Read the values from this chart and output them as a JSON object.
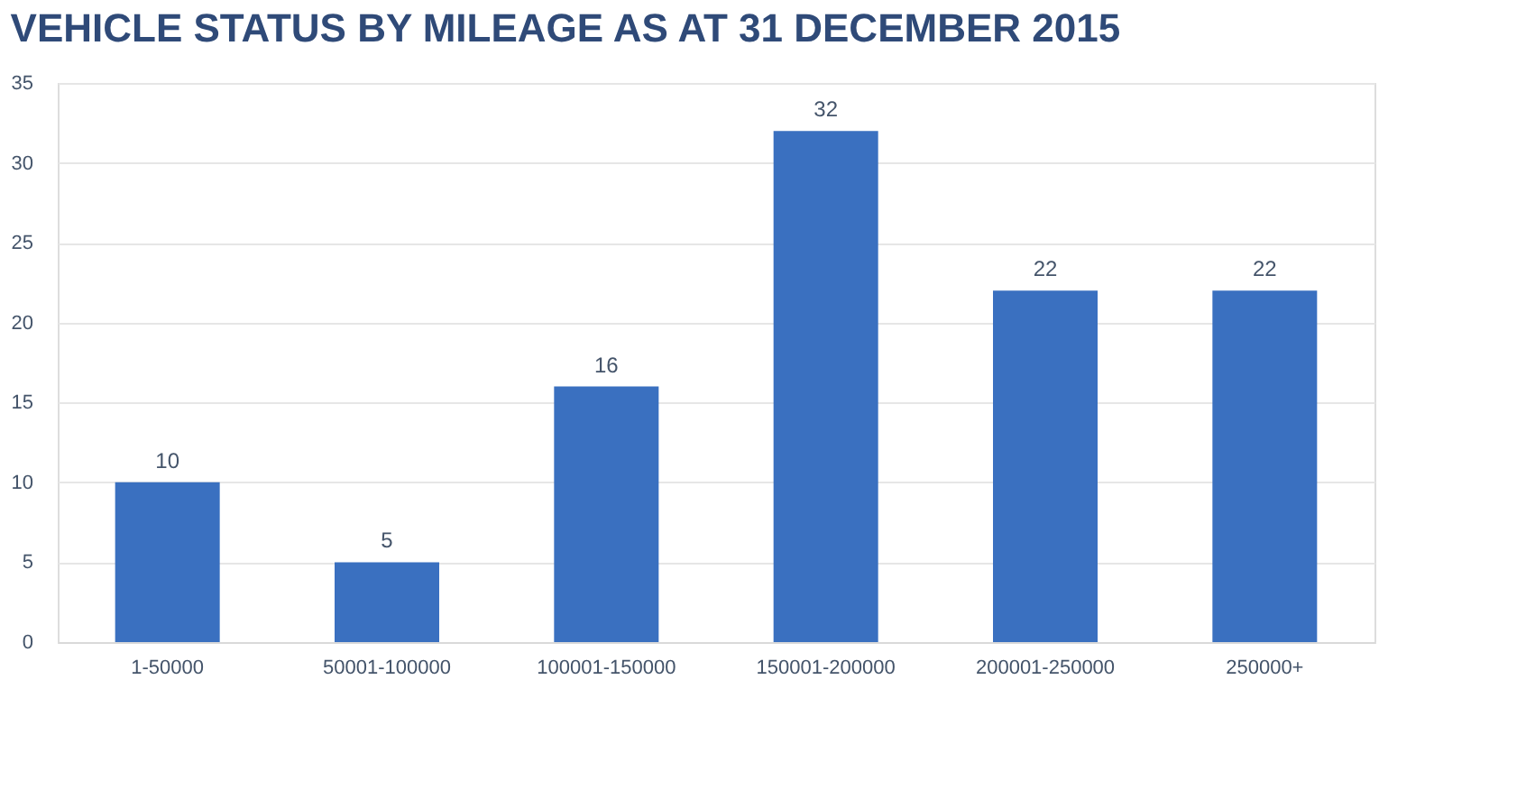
{
  "chart_data": {
    "type": "bar",
    "title": "VEHICLE STATUS BY MILEAGE AS AT 31 DECEMBER  2015",
    "categories": [
      "1-50000",
      "50001-100000",
      "100001-150000",
      "150001-200000",
      "200001-250000",
      "250000+"
    ],
    "values": [
      10,
      5,
      16,
      32,
      22,
      22
    ],
    "color": "#3a70c0",
    "ylim": [
      0,
      35
    ],
    "yticks": [
      0,
      5,
      10,
      15,
      20,
      25,
      30,
      35
    ],
    "grid": "y",
    "data_labels": true
  }
}
